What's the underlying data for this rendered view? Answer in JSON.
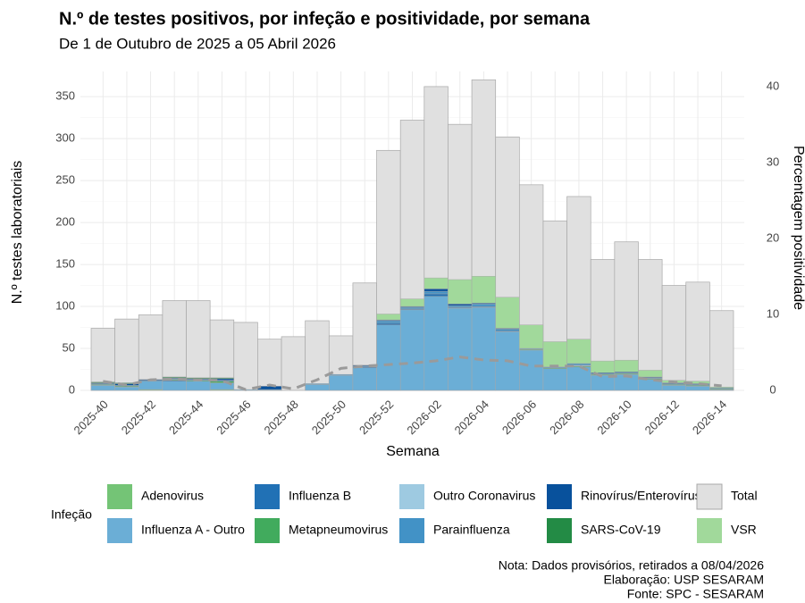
{
  "chart_data": {
    "type": "bar",
    "title": "N.º de testes positivos, por infeção e positividade, por semana",
    "subtitle": "De 1 de Outubro de 2025 a 05 Abril 2026",
    "x_label": "Semana",
    "y_label": "N.º testes laboratoriais",
    "y2_label": "Percentagem positividade",
    "legend_title": "Infeção",
    "caption": [
      "Nota: Dados provisórios, retirados a 08/04/2026",
      "Elaboração: USP SESARAM",
      "Fonte: SPC - SESARAM"
    ],
    "categories": [
      "2025-40",
      null,
      "2025-42",
      null,
      "2025-44",
      null,
      "2025-46",
      null,
      "2025-48",
      null,
      "2025-50",
      null,
      "2025-52",
      null,
      "2026-02",
      null,
      "2026-04",
      null,
      "2026-06",
      null,
      "2026-08",
      null,
      "2026-10",
      null,
      "2026-12",
      null,
      "2026-14"
    ],
    "ylim": [
      0,
      380
    ],
    "yticks": [
      0,
      50,
      100,
      150,
      200,
      250,
      300,
      350
    ],
    "y2lim": [
      0,
      42
    ],
    "y2ticks": [
      0,
      10,
      20,
      30,
      40
    ],
    "grid": true,
    "legend": "bottom",
    "series": [
      {
        "name": "Adenovirus",
        "color": "#74c476",
        "values": [
          0,
          0,
          1,
          0,
          0,
          1,
          0,
          0,
          0,
          0,
          0,
          0,
          0,
          0,
          0,
          0,
          0,
          0,
          0,
          0,
          0,
          0,
          0,
          0,
          0,
          0,
          0
        ]
      },
      {
        "name": "Influenza A - Outro",
        "color": "#6baed6",
        "values": [
          6,
          4,
          10,
          11,
          11,
          8,
          1,
          1,
          0,
          7,
          18,
          27,
          78,
          96,
          112,
          98,
          99,
          70,
          48,
          26,
          28,
          18,
          19,
          13,
          6,
          5,
          1
        ]
      },
      {
        "name": "Influenza B",
        "color": "#2171b5",
        "values": [
          0,
          0,
          0,
          1,
          0,
          0,
          0,
          0,
          0,
          0,
          0,
          1,
          2,
          1,
          3,
          1,
          1,
          1,
          0,
          0,
          0,
          0,
          0,
          0,
          0,
          0,
          0
        ]
      },
      {
        "name": "Metapneumovirus",
        "color": "#41ab5d",
        "values": [
          1,
          1,
          0,
          1,
          1,
          2,
          0,
          0,
          0,
          0,
          0,
          0,
          0,
          0,
          0,
          0,
          0,
          0,
          1,
          1,
          1,
          1,
          1,
          1,
          1,
          1,
          1
        ]
      },
      {
        "name": "Outro Coronavirus",
        "color": "#9ecae1",
        "values": [
          0,
          0,
          0,
          0,
          0,
          0,
          0,
          0,
          0,
          0,
          0,
          0,
          0,
          0,
          0,
          0,
          0,
          0,
          0,
          0,
          1,
          0,
          0,
          0,
          0,
          0,
          0
        ]
      },
      {
        "name": "Parainfluenza",
        "color": "#4292c6",
        "values": [
          1,
          1,
          1,
          1,
          1,
          1,
          0,
          0,
          0,
          1,
          1,
          1,
          3,
          2,
          3,
          2,
          3,
          2,
          1,
          1,
          2,
          1,
          1,
          1,
          1,
          1,
          1
        ]
      },
      {
        "name": "Rinovírus/Enterovírus",
        "color": "#08519c",
        "values": [
          1,
          2,
          1,
          1,
          1,
          2,
          0,
          4,
          0,
          0,
          0,
          1,
          1,
          1,
          3,
          2,
          1,
          1,
          0,
          0,
          0,
          1,
          1,
          1,
          1,
          1,
          0
        ]
      },
      {
        "name": "SARS-CoV-19",
        "color": "#238b45",
        "values": [
          1,
          1,
          0,
          1,
          1,
          1,
          0,
          0,
          0,
          0,
          0,
          0,
          0,
          0,
          0,
          0,
          0,
          0,
          0,
          0,
          0,
          0,
          0,
          0,
          0,
          0,
          0
        ]
      },
      {
        "name": "Total",
        "color": "#e0e0e0",
        "overlay": true,
        "values": [
          74,
          85,
          90,
          107,
          107,
          84,
          81,
          61,
          64,
          83,
          65,
          128,
          286,
          322,
          362,
          317,
          370,
          302,
          245,
          202,
          231,
          156,
          177,
          156,
          125,
          129,
          95
        ]
      },
      {
        "name": "VSR",
        "color": "#a1d99b",
        "values": [
          0,
          0,
          0,
          0,
          0,
          0,
          0,
          0,
          0,
          0,
          0,
          0,
          7,
          9,
          13,
          29,
          32,
          37,
          28,
          30,
          29,
          14,
          14,
          8,
          3,
          3,
          1
        ]
      }
    ],
    "positivity": {
      "color": "#9a9a9a",
      "axis": "y2",
      "dashed": true,
      "values": [
        1.2,
        0.7,
        1.4,
        1.5,
        1.4,
        1.3,
        0.1,
        0.7,
        0.2,
        1.4,
        2.9,
        3.2,
        3.4,
        3.6,
        3.9,
        4.4,
        4.0,
        3.9,
        3.2,
        3.2,
        3.2,
        1.8,
        1.9,
        1.4,
        1.1,
        0.9,
        0.6
      ]
    }
  }
}
